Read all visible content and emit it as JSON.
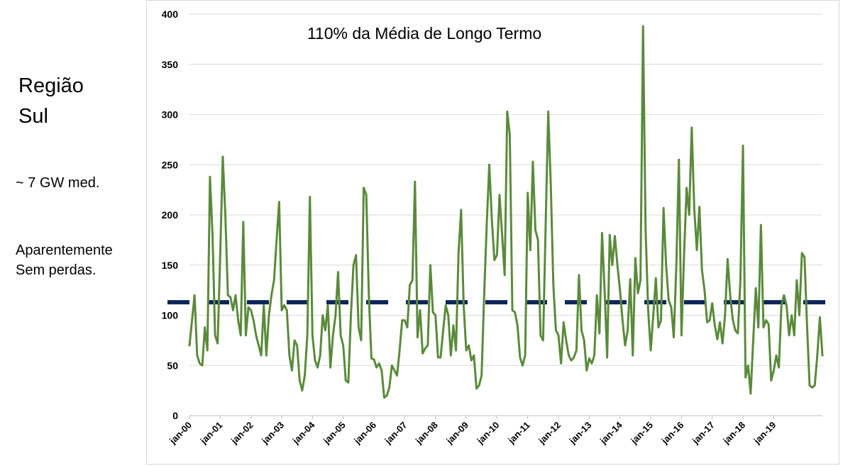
{
  "sidebar": {
    "region_line1": "Região",
    "region_line2": "Sul",
    "capacity": "~ 7 GW med.",
    "note_line1": "Aparentemente",
    "note_line2": "Sem perdas."
  },
  "chart_data": {
    "type": "line",
    "title": "110% da Média de Longo Termo",
    "xlabel": "",
    "ylabel": "",
    "ylim": [
      0,
      400
    ],
    "yticks": [
      0,
      50,
      100,
      150,
      200,
      250,
      300,
      350,
      400
    ],
    "grid": true,
    "x_start": "jan-00",
    "x_tick_labels": [
      "jan-00",
      "jan-01",
      "jan-02",
      "jan-03",
      "jan-04",
      "jan-05",
      "jan-06",
      "jan-07",
      "jan-08",
      "jan-09",
      "jan-10",
      "jan-11",
      "jan-12",
      "jan-13",
      "jan-14",
      "jan-15",
      "jan-16",
      "jan-17",
      "jan-18",
      "jan-19"
    ],
    "colors": {
      "series": "#5a8a3a",
      "reference": "#0d2557",
      "grid": "#d9d9d9"
    },
    "reference_line": {
      "y": 113,
      "style": "dashed"
    },
    "series": [
      {
        "values": [
          70,
          95,
          120,
          60,
          52,
          50,
          88,
          65,
          238,
          180,
          80,
          72,
          160,
          258,
          200,
          120,
          118,
          105,
          120,
          95,
          80,
          193,
          80,
          108,
          105,
          95,
          80,
          70,
          60,
          110,
          60,
          100,
          120,
          135,
          175,
          213,
          105,
          110,
          105,
          60,
          45,
          75,
          70,
          35,
          25,
          40,
          80,
          218,
          80,
          55,
          48,
          60,
          100,
          85,
          110,
          48,
          80,
          100,
          143,
          80,
          70,
          35,
          33,
          100,
          150,
          160,
          88,
          75,
          227,
          220,
          120,
          57,
          56,
          48,
          52,
          45,
          18,
          20,
          28,
          50,
          45,
          40,
          65,
          95,
          95,
          88,
          130,
          135,
          233,
          78,
          105,
          62,
          67,
          70,
          150,
          103,
          100,
          58,
          58,
          85,
          110,
          100,
          60,
          90,
          65,
          162,
          205,
          110,
          65,
          70,
          55,
          60,
          27,
          30,
          40,
          120,
          190,
          250,
          195,
          155,
          160,
          220,
          180,
          140,
          303,
          280,
          105,
          103,
          90,
          58,
          50,
          60,
          222,
          165,
          253,
          185,
          175,
          80,
          75,
          190,
          303,
          230,
          130,
          85,
          80,
          52,
          93,
          75,
          60,
          55,
          58,
          65,
          140,
          85,
          75,
          45,
          57,
          52,
          60,
          120,
          82,
          182,
          125,
          58,
          180,
          150,
          179,
          150,
          125,
          95,
          70,
          85,
          136,
          60,
          157,
          122,
          135,
          388,
          185,
          105,
          65,
          100,
          137,
          88,
          95,
          207,
          150,
          115,
          108,
          78,
          150,
          255,
          80,
          160,
          227,
          200,
          287,
          205,
          165,
          208,
          145,
          125,
          93,
          95,
          112,
          90,
          76,
          93,
          72,
          100,
          156,
          120,
          96,
          85,
          82,
          135,
          269,
          38,
          50,
          22,
          75,
          127,
          88,
          190,
          88,
          95,
          91,
          35,
          45,
          60,
          48,
          110,
          120,
          110,
          80,
          100,
          80,
          135,
          100,
          162,
          158,
          90,
          30,
          28,
          30,
          60,
          98,
          60
        ]
      }
    ]
  }
}
